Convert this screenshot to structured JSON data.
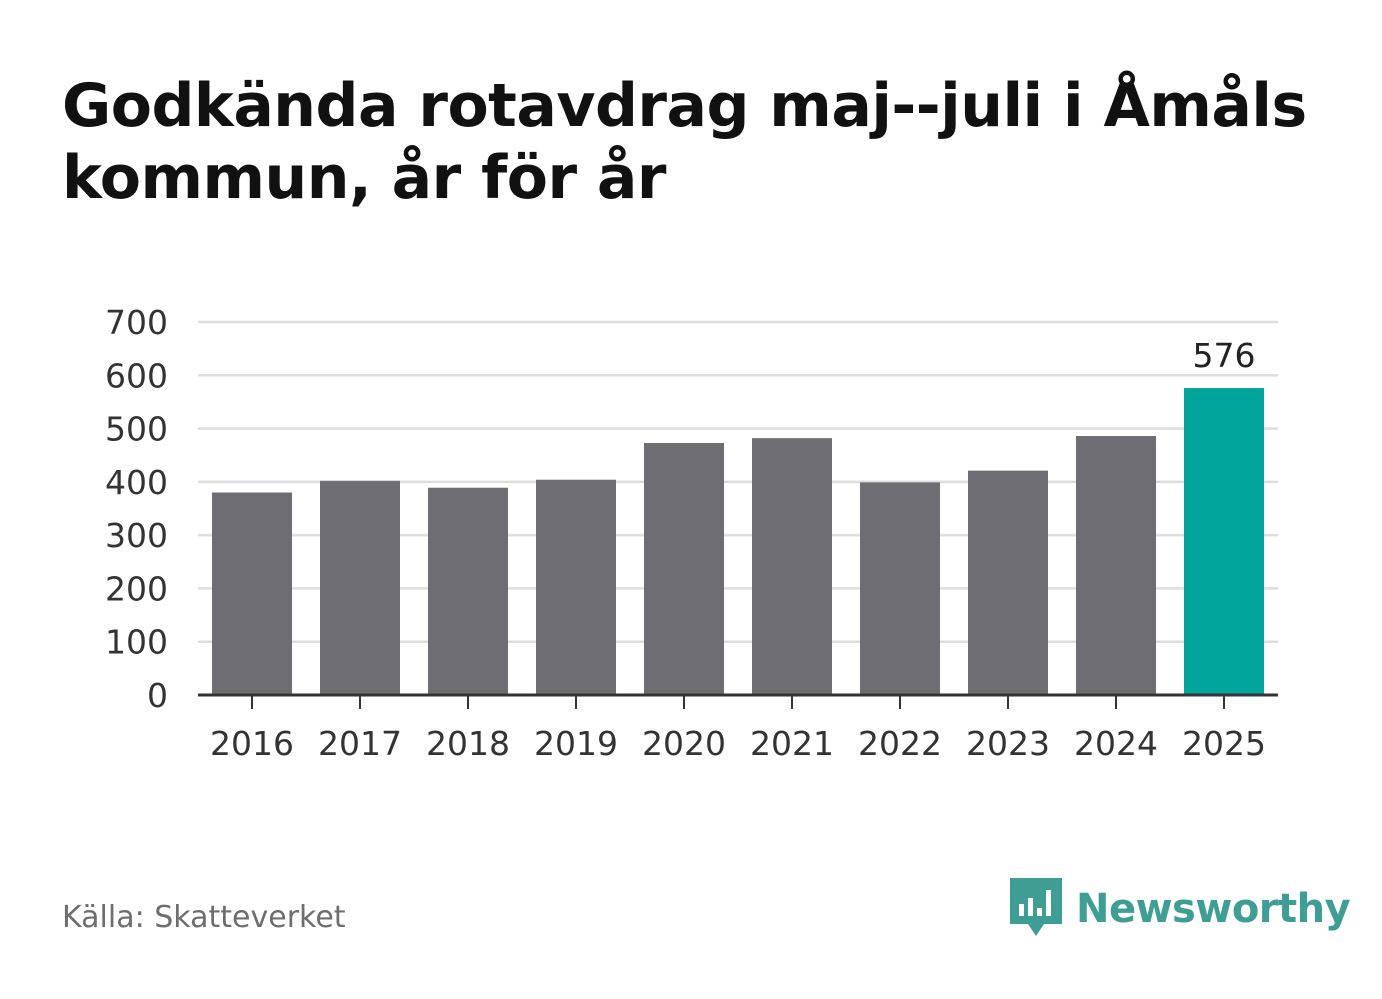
{
  "chart_data": {
    "type": "bar",
    "title": "Godkända rotavdrag maj--juli i Åmåls kommun, år för år",
    "xlabel": "",
    "ylabel": "",
    "categories": [
      "2016",
      "2017",
      "2018",
      "2019",
      "2020",
      "2021",
      "2022",
      "2023",
      "2024",
      "2025"
    ],
    "values": [
      380,
      402,
      389,
      404,
      473,
      482,
      399,
      421,
      486,
      576
    ],
    "ylim": [
      0,
      700
    ],
    "yticks": [
      0,
      100,
      200,
      300,
      400,
      500,
      600,
      700
    ],
    "grid": true,
    "highlight_index": 9,
    "highlight_label": "576",
    "colors": {
      "bar": "#6e6d73",
      "highlight": "#00a49a",
      "grid": "#dddddd",
      "axis": "#333333"
    }
  },
  "footer": {
    "source": "Källa: Skatteverket",
    "brand": "Newsworthy",
    "brand_icon": "bar-chart-speech-bubble-icon",
    "brand_color": "#3e9e93"
  }
}
